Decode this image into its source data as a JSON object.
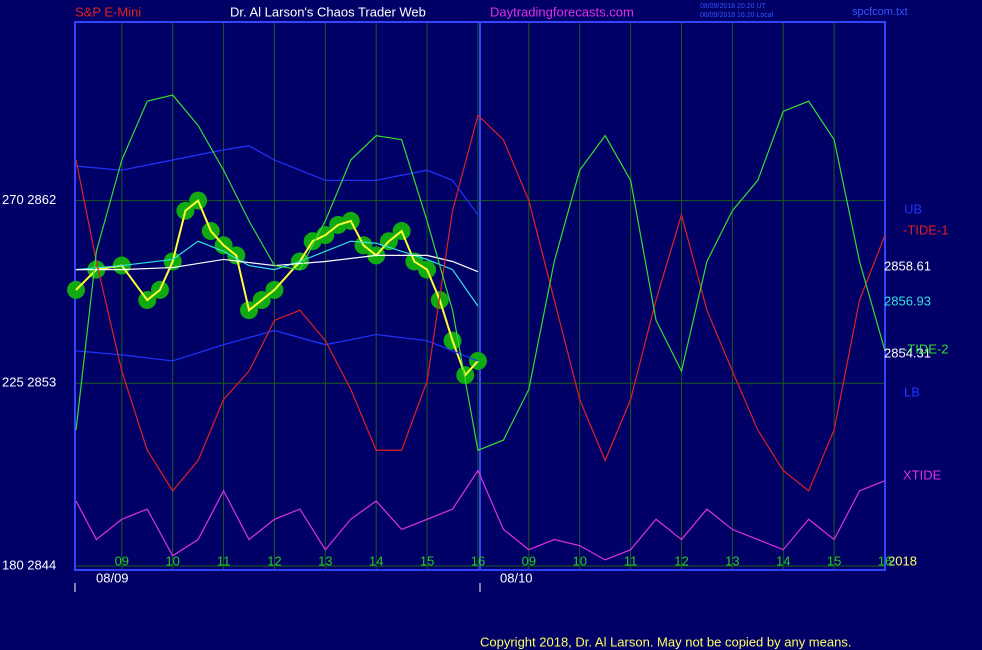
{
  "chart_data": {
    "type": "line",
    "symbol": "S&P E-Mini",
    "title": "Dr. Al Larson's Chaos Trader Web",
    "site": "Daytradingforecasts.com",
    "timestamps": [
      "08/09/2018 20:20 UT",
      "08/09/2018 16:20 Local"
    ],
    "file": "spcfcom.txt",
    "year": "2018",
    "copyright": "Copyright 2018, Dr. Al Larson. May not be copied by any means.",
    "date_labels": [
      "08/09",
      "08/10"
    ],
    "last_values": [
      2858.61,
      2856.93,
      2854.31
    ],
    "xlim": [
      8.08,
      24
    ],
    "ylim": [
      2843.8,
      2870.8
    ],
    "yticks": [
      {
        "value": 2862,
        "label": "270 2862"
      },
      {
        "value": 2853,
        "label": "225 2853"
      },
      {
        "value": 2844,
        "label": "180 2844"
      }
    ],
    "xticks": [
      {
        "value": 9,
        "label": "09"
      },
      10,
      11,
      12,
      13,
      14,
      15,
      16,
      {
        "value": 17,
        "label": "09"
      },
      {
        "value": 18,
        "label": "10"
      },
      {
        "value": 19,
        "label": "11"
      },
      {
        "value": 20,
        "label": "12"
      },
      {
        "value": 21,
        "label": "13"
      },
      {
        "value": 22,
        "label": "14"
      },
      {
        "value": 23,
        "label": "15"
      },
      {
        "value": 24,
        "label": "16"
      }
    ],
    "grid": true,
    "x": [
      8.1,
      8.5,
      9,
      9.5,
      10,
      10.5,
      11,
      11.5,
      12,
      12.5,
      13,
      13.5,
      14,
      14.5,
      15,
      15.5,
      16,
      16.5,
      17,
      17.5,
      18,
      18.5,
      19,
      19.5,
      20,
      20.5,
      21,
      21.5,
      22,
      22.5,
      23,
      23.5,
      24
    ],
    "series": [
      {
        "color": "#ffff33",
        "markers": true,
        "x": [
          8.1,
          8.5,
          9,
          9.5,
          9.75,
          10,
          10.25,
          10.5,
          10.75,
          11,
          11.25,
          11.5,
          11.75,
          12,
          12.5,
          12.75,
          13,
          13.25,
          13.5,
          13.75,
          14,
          14.25,
          14.5,
          14.75,
          15,
          15.25,
          15.5,
          15.75,
          16
        ],
        "values": [
          2857.6,
          2858.6,
          2858.8,
          2857.1,
          2857.6,
          2859.0,
          2861.5,
          2862.0,
          2860.5,
          2859.8,
          2859.3,
          2856.6,
          2857.1,
          2857.6,
          2859.0,
          2860.0,
          2860.3,
          2860.8,
          2861.0,
          2859.8,
          2859.3,
          2860.0,
          2860.5,
          2859.0,
          2858.6,
          2857.1,
          2855.1,
          2853.4,
          2854.1
        ]
      },
      {
        "color": "#33e0e0",
        "x": [
          8.1,
          9,
          10,
          10.5,
          11,
          11.5,
          12,
          12.5,
          13,
          13.5,
          14,
          14.5,
          15,
          15.5,
          16
        ],
        "values": [
          2858.6,
          2858.8,
          2859.1,
          2860.0,
          2859.5,
          2858.8,
          2858.6,
          2859.0,
          2859.5,
          2860.0,
          2859.9,
          2859.5,
          2859.1,
          2858.6,
          2856.8
        ]
      },
      {
        "color": "#ffffff",
        "x": [
          8.1,
          9,
          10,
          11,
          12,
          13,
          14,
          15,
          15.5,
          16
        ],
        "values": [
          2858.6,
          2858.6,
          2858.7,
          2859.1,
          2858.8,
          2859.0,
          2859.3,
          2859.3,
          2859.0,
          2858.5
        ]
      },
      {
        "name": "UB",
        "color": "#2233ff",
        "x": [
          8.1,
          9,
          10,
          11,
          11.5,
          12,
          13,
          14,
          15,
          15.5,
          16
        ],
        "values": [
          2863.7,
          2863.5,
          2864.0,
          2864.5,
          2864.7,
          2864.0,
          2863.0,
          2863.0,
          2863.5,
          2863.0,
          2861.3
        ]
      },
      {
        "name": "LB",
        "color": "#2233ff",
        "x": [
          8.1,
          9,
          10,
          11,
          12,
          13,
          14,
          15,
          15.5,
          16
        ],
        "values": [
          2854.6,
          2854.4,
          2854.1,
          2854.9,
          2855.6,
          2854.9,
          2855.4,
          2855.1,
          2854.6,
          2854.1
        ]
      },
      {
        "name": "-TIDE-1",
        "color": "#e02020",
        "values": [
          2864.0,
          2859.0,
          2853.6,
          2849.7,
          2847.7,
          2849.2,
          2852.2,
          2853.6,
          2856.1,
          2856.6,
          2855.1,
          2852.7,
          2849.7,
          2849.7,
          2853.1,
          2861.5,
          2866.2,
          2865.0,
          2862.0,
          2857.1,
          2852.2,
          2849.2,
          2852.2,
          2857.1,
          2861.3,
          2856.6,
          2853.6,
          2850.7,
          2848.7,
          2847.7,
          2850.7,
          2857.1,
          2860.3
        ]
      },
      {
        "name": "-TIDE-2",
        "color": "#33dd33",
        "values": [
          2850.7,
          2859.5,
          2864.0,
          2866.9,
          2867.2,
          2865.7,
          2863.5,
          2861.0,
          2858.8,
          2858.6,
          2861.0,
          2864.0,
          2865.2,
          2865.0,
          2861.0,
          2856.6,
          2849.7,
          2850.2,
          2852.7,
          2859.0,
          2863.5,
          2865.2,
          2863.0,
          2856.1,
          2853.6,
          2859.0,
          2861.5,
          2863.0,
          2866.4,
          2866.9,
          2865.0,
          2859.0,
          2854.6
        ]
      },
      {
        "name": "XTIDE",
        "color": "#e030e0",
        "values": [
          2847.2,
          2845.3,
          2846.3,
          2846.8,
          2844.5,
          2845.3,
          2847.7,
          2845.3,
          2846.3,
          2846.8,
          2844.8,
          2846.3,
          2847.2,
          2845.8,
          2846.3,
          2846.8,
          2848.7,
          2845.8,
          2844.8,
          2845.3,
          2845.0,
          2844.3,
          2844.8,
          2846.3,
          2845.3,
          2846.8,
          2845.8,
          2845.3,
          2844.8,
          2846.3,
          2845.3,
          2847.7,
          2848.2
        ]
      }
    ]
  }
}
